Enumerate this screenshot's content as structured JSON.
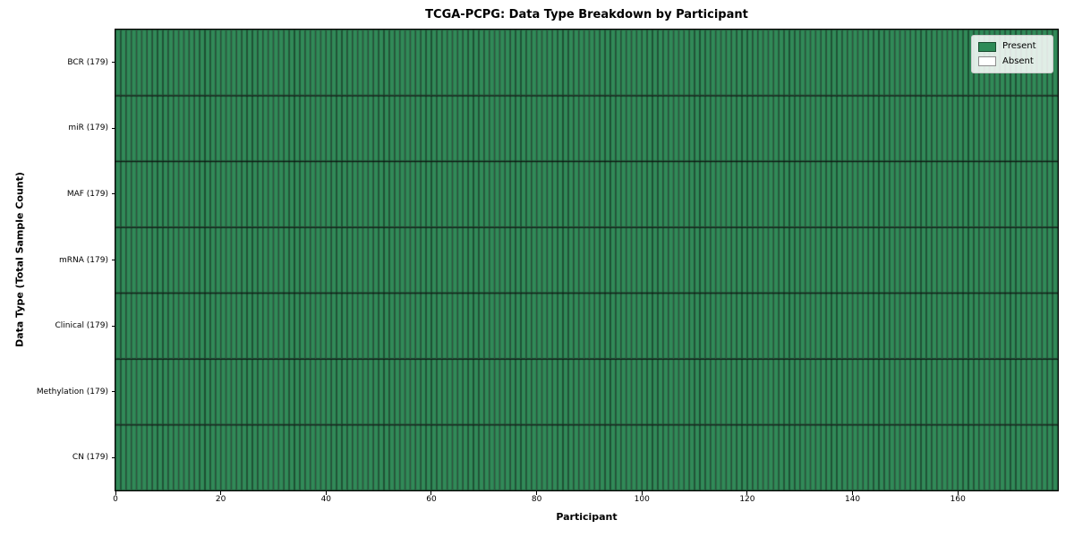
{
  "chart_data": {
    "type": "heatmap",
    "title": "TCGA-PCPG: Data Type Breakdown by Participant",
    "xlabel": "Participant",
    "ylabel": "Data Type (Total Sample Count)",
    "n_participants": 179,
    "xlim": [
      0,
      179
    ],
    "x_ticks": [
      0,
      20,
      40,
      60,
      80,
      100,
      120,
      140,
      160
    ],
    "rows": [
      {
        "label": "BCR (179)",
        "present": 179,
        "absent": 0
      },
      {
        "label": "miR (179)",
        "present": 179,
        "absent": 0
      },
      {
        "label": "MAF (179)",
        "present": 179,
        "absent": 0
      },
      {
        "label": "mRNA (179)",
        "present": 179,
        "absent": 0
      },
      {
        "label": "Clinical (179)",
        "present": 179,
        "absent": 0
      },
      {
        "label": "Methylation (179)",
        "present": 179,
        "absent": 0
      },
      {
        "label": "CN (179)",
        "present": 179,
        "absent": 0
      }
    ],
    "all_cells_present": true,
    "legend": {
      "position": "upper right",
      "entries": [
        {
          "label": "Present",
          "color": "#2e8b57"
        },
        {
          "label": "Absent",
          "color": "#ffffff"
        }
      ]
    },
    "colors": {
      "present": "#318a58",
      "absent": "#ffffff",
      "cell_edge": "rgba(0,0,0,0.6)",
      "row_divider": "rgba(0,0,0,0.75)",
      "spine": "#000000"
    },
    "grid": "cell-edges-only"
  }
}
